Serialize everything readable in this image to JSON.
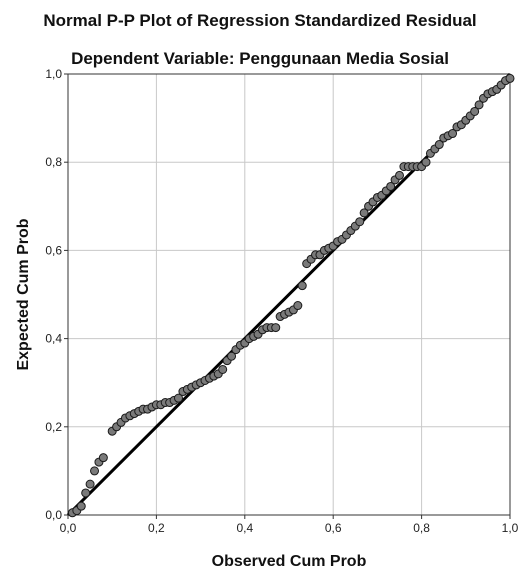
{
  "chart_data": {
    "type": "scatter",
    "title": "Normal P-P Plot of Regression Standardized Residual",
    "subtitle": "Dependent Variable: Penggunaan Media Sosial",
    "xlabel": "Observed Cum Prob",
    "ylabel": "Expected Cum Prob",
    "xlim": [
      0,
      1
    ],
    "ylim": [
      0,
      1
    ],
    "x_ticks": [
      "0,0",
      "0,2",
      "0,4",
      "0,6",
      "0,8",
      "1,0"
    ],
    "y_ticks": [
      "0,0",
      "0,2",
      "0,4",
      "0,6",
      "0,8",
      "1,0"
    ],
    "grid": true,
    "reference_line": [
      [
        0,
        0
      ],
      [
        1,
        1
      ]
    ],
    "points": [
      [
        0.01,
        0.005
      ],
      [
        0.02,
        0.01
      ],
      [
        0.03,
        0.02
      ],
      [
        0.04,
        0.05
      ],
      [
        0.05,
        0.07
      ],
      [
        0.06,
        0.1
      ],
      [
        0.07,
        0.12
      ],
      [
        0.08,
        0.13
      ],
      [
        0.1,
        0.19
      ],
      [
        0.11,
        0.2
      ],
      [
        0.12,
        0.21
      ],
      [
        0.13,
        0.22
      ],
      [
        0.14,
        0.225
      ],
      [
        0.15,
        0.23
      ],
      [
        0.16,
        0.235
      ],
      [
        0.17,
        0.24
      ],
      [
        0.18,
        0.24
      ],
      [
        0.19,
        0.245
      ],
      [
        0.2,
        0.25
      ],
      [
        0.21,
        0.25
      ],
      [
        0.22,
        0.255
      ],
      [
        0.23,
        0.255
      ],
      [
        0.24,
        0.26
      ],
      [
        0.25,
        0.265
      ],
      [
        0.26,
        0.28
      ],
      [
        0.27,
        0.285
      ],
      [
        0.28,
        0.29
      ],
      [
        0.29,
        0.295
      ],
      [
        0.3,
        0.3
      ],
      [
        0.31,
        0.305
      ],
      [
        0.32,
        0.31
      ],
      [
        0.33,
        0.315
      ],
      [
        0.34,
        0.32
      ],
      [
        0.35,
        0.33
      ],
      [
        0.36,
        0.35
      ],
      [
        0.37,
        0.36
      ],
      [
        0.38,
        0.375
      ],
      [
        0.39,
        0.385
      ],
      [
        0.4,
        0.39
      ],
      [
        0.41,
        0.4
      ],
      [
        0.42,
        0.405
      ],
      [
        0.43,
        0.41
      ],
      [
        0.44,
        0.42
      ],
      [
        0.45,
        0.425
      ],
      [
        0.46,
        0.425
      ],
      [
        0.47,
        0.425
      ],
      [
        0.48,
        0.45
      ],
      [
        0.49,
        0.455
      ],
      [
        0.5,
        0.46
      ],
      [
        0.51,
        0.465
      ],
      [
        0.52,
        0.475
      ],
      [
        0.53,
        0.52
      ],
      [
        0.54,
        0.57
      ],
      [
        0.55,
        0.58
      ],
      [
        0.56,
        0.59
      ],
      [
        0.57,
        0.59
      ],
      [
        0.58,
        0.6
      ],
      [
        0.59,
        0.605
      ],
      [
        0.6,
        0.61
      ],
      [
        0.61,
        0.62
      ],
      [
        0.62,
        0.625
      ],
      [
        0.63,
        0.635
      ],
      [
        0.64,
        0.645
      ],
      [
        0.65,
        0.655
      ],
      [
        0.66,
        0.665
      ],
      [
        0.67,
        0.685
      ],
      [
        0.68,
        0.7
      ],
      [
        0.69,
        0.71
      ],
      [
        0.7,
        0.72
      ],
      [
        0.71,
        0.725
      ],
      [
        0.72,
        0.735
      ],
      [
        0.73,
        0.745
      ],
      [
        0.74,
        0.76
      ],
      [
        0.75,
        0.77
      ],
      [
        0.76,
        0.79
      ],
      [
        0.77,
        0.79
      ],
      [
        0.78,
        0.79
      ],
      [
        0.79,
        0.79
      ],
      [
        0.8,
        0.79
      ],
      [
        0.81,
        0.8
      ],
      [
        0.82,
        0.82
      ],
      [
        0.83,
        0.83
      ],
      [
        0.84,
        0.84
      ],
      [
        0.85,
        0.855
      ],
      [
        0.86,
        0.86
      ],
      [
        0.87,
        0.865
      ],
      [
        0.88,
        0.88
      ],
      [
        0.89,
        0.885
      ],
      [
        0.9,
        0.895
      ],
      [
        0.91,
        0.905
      ],
      [
        0.92,
        0.915
      ],
      [
        0.93,
        0.93
      ],
      [
        0.94,
        0.945
      ],
      [
        0.95,
        0.955
      ],
      [
        0.96,
        0.96
      ],
      [
        0.97,
        0.965
      ],
      [
        0.98,
        0.975
      ],
      [
        0.99,
        0.985
      ],
      [
        1.0,
        0.99
      ]
    ]
  }
}
